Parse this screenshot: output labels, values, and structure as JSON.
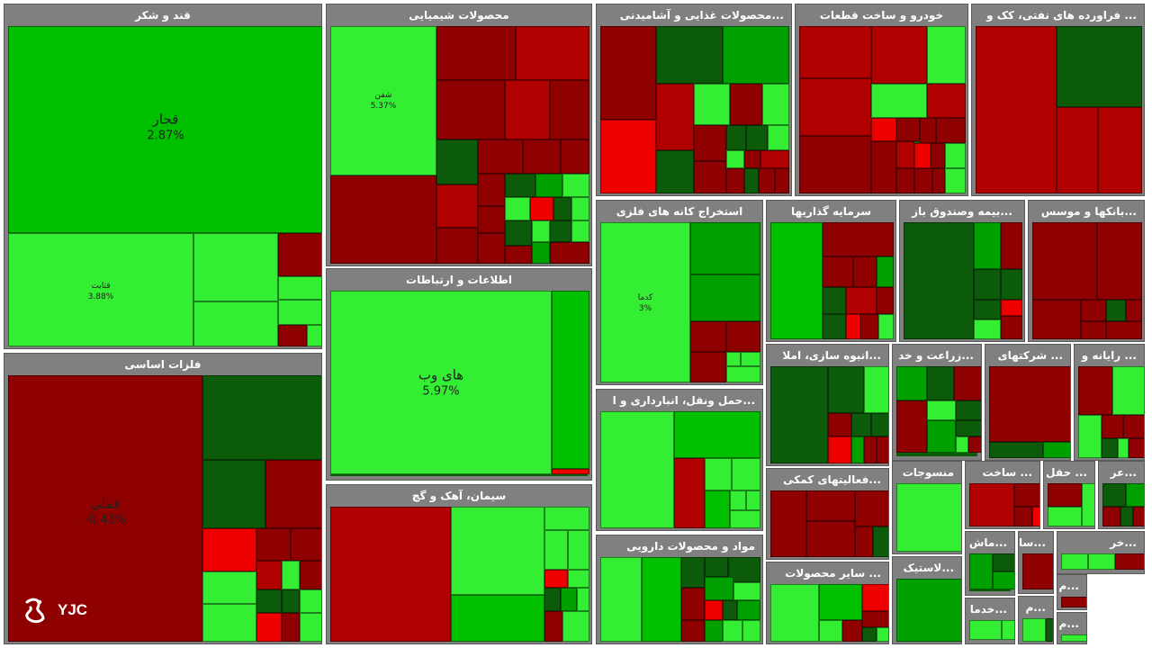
{
  "colors": {
    "bright_green": "#33ee33",
    "green": "#00c000",
    "mid_green": "#00a000",
    "dark_green": "#0b5b0b",
    "dark_red": "#8f0000",
    "red": "#b00000",
    "bright_red": "#ee0000",
    "header_gray": "#808080"
  },
  "logo": {
    "text": "YJC",
    "icon": "yjc-logo-icon"
  },
  "chart_data": {
    "type": "heatmap",
    "sectors": [
      {
        "title": "قند و شکر",
        "stocks": [
          {
            "name": "قجار",
            "change": "2.87%"
          },
          {
            "name": "قثابت",
            "change": "3.88%"
          }
        ]
      },
      {
        "title": "محصولات شیمیایی",
        "stocks": [
          {
            "name": "شفن",
            "change": "5.37%"
          }
        ]
      },
      {
        "title": "...محصولات غذایی و آشامیدنی"
      },
      {
        "title": "خودرو و ساخت قطعات"
      },
      {
        "title": "... فراورده های نفتی، کک و"
      },
      {
        "title": "فلزات اساسی",
        "stocks": [
          {
            "name": "فملی",
            "change": "-0.43%"
          }
        ]
      },
      {
        "title": "اطلاعات و ارتباطات",
        "stocks": [
          {
            "name": "های وب",
            "change": "5.97%"
          }
        ]
      },
      {
        "title": "سیمان، آهک و گچ"
      },
      {
        "title": "استخراج کانه های فلزی",
        "stocks": [
          {
            "name": "کدما",
            "change": "3%"
          }
        ]
      },
      {
        "title": "سرمایه گذاریها"
      },
      {
        "title": "...بیمه وصندوق باز"
      },
      {
        "title": "...بانکها و موسس"
      },
      {
        "title": "...حمل ونقل، انبارداری و ا"
      },
      {
        "title": "...انبوه سازی، املا"
      },
      {
        "title": "...زراعت و خد"
      },
      {
        "title": "... شرکتهای"
      },
      {
        "title": "... رایانه و"
      },
      {
        "title": "...فعالیتهای کمکی"
      },
      {
        "title": "منسوجات"
      },
      {
        "title": "... ساخت"
      },
      {
        "title": "... حقل"
      },
      {
        "title": "...عر"
      },
      {
        "title": "مواد و محصولات دارویی"
      },
      {
        "title": "... سایر محصولات"
      },
      {
        "title": "...لاستیک"
      },
      {
        "title": "...ماش"
      },
      {
        "title": "...سا"
      },
      {
        "title": "...خر"
      },
      {
        "title": "...م"
      },
      {
        "title": "...خدما"
      },
      {
        "title": "...م"
      },
      {
        "title": "...م"
      }
    ]
  }
}
